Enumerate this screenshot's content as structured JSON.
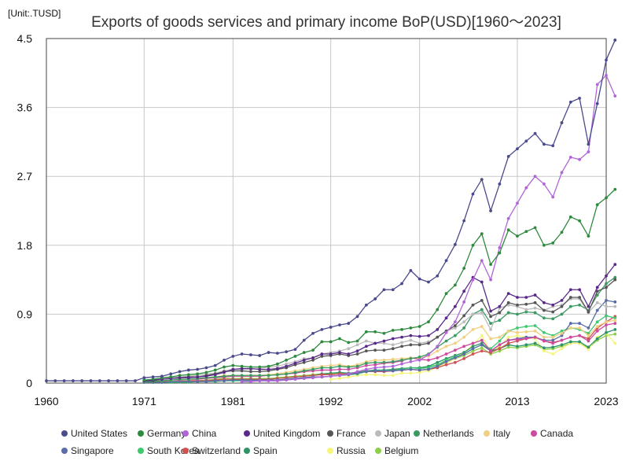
{
  "chart_data": {
    "type": "line",
    "unit_label": "[Unit:.TUSD]",
    "title": "Exports of goods services and primary income BoP(USD)[1960～2023]",
    "xlabel": "",
    "ylabel": "",
    "xlim": [
      1960,
      2023
    ],
    "ylim": [
      0,
      4.5
    ],
    "x_ticks": [
      "1960",
      "1971",
      "1981",
      "1992",
      "2002",
      "2013",
      "2023"
    ],
    "y_ticks": [
      "0",
      "0.9",
      "1.8",
      "2.7",
      "3.6",
      "4.5"
    ],
    "grid": true,
    "legend_position": "bottom",
    "series": [
      {
        "name": "United States",
        "color": "#4a4a8c",
        "start": 1960,
        "values": [
          0.03,
          0.03,
          0.03,
          0.03,
          0.03,
          0.03,
          0.03,
          0.03,
          0.03,
          0.03,
          0.03,
          0.07,
          0.08,
          0.09,
          0.12,
          0.15,
          0.17,
          0.18,
          0.2,
          0.23,
          0.3,
          0.35,
          0.38,
          0.37,
          0.36,
          0.4,
          0.39,
          0.41,
          0.44,
          0.56,
          0.65,
          0.7,
          0.73,
          0.76,
          0.78,
          0.87,
          1.02,
          1.1,
          1.22,
          1.22,
          1.3,
          1.47,
          1.36,
          1.32,
          1.4,
          1.6,
          1.81,
          2.12,
          2.47,
          2.66,
          2.25,
          2.6,
          2.96,
          3.06,
          3.16,
          3.26,
          3.12,
          3.1,
          3.4,
          3.67,
          3.72,
          3.12,
          3.65,
          4.22,
          4.48
        ]
      },
      {
        "name": "Germany",
        "color": "#2d8a3e",
        "start": 1971,
        "values": [
          0.04,
          0.05,
          0.07,
          0.08,
          0.1,
          0.11,
          0.12,
          0.14,
          0.17,
          0.21,
          0.23,
          0.22,
          0.21,
          0.21,
          0.22,
          0.25,
          0.3,
          0.35,
          0.4,
          0.43,
          0.54,
          0.54,
          0.58,
          0.53,
          0.55,
          0.67,
          0.67,
          0.65,
          0.69,
          0.7,
          0.72,
          0.74,
          0.8,
          0.96,
          1.17,
          1.28,
          1.5,
          1.8,
          1.95,
          1.55,
          1.7,
          2.0,
          1.92,
          1.98,
          2.03,
          1.8,
          1.83,
          1.97,
          2.17,
          2.12,
          1.92,
          2.33,
          2.42,
          2.53
        ]
      },
      {
        "name": "China",
        "color": "#b265d8",
        "start": 1982,
        "values": [
          0.02,
          0.02,
          0.03,
          0.03,
          0.03,
          0.04,
          0.05,
          0.06,
          0.07,
          0.08,
          0.09,
          0.1,
          0.12,
          0.15,
          0.18,
          0.2,
          0.21,
          0.22,
          0.25,
          0.28,
          0.3,
          0.37,
          0.48,
          0.66,
          0.8,
          1.06,
          1.35,
          1.6,
          1.35,
          1.77,
          2.15,
          2.35,
          2.55,
          2.7,
          2.6,
          2.43,
          2.75,
          2.95,
          2.92,
          3.02,
          3.9,
          4.02,
          3.75
        ]
      },
      {
        "name": "United Kingdom",
        "color": "#5a2a8a",
        "start": 1971,
        "values": [
          0.03,
          0.04,
          0.05,
          0.06,
          0.07,
          0.07,
          0.08,
          0.09,
          0.11,
          0.14,
          0.18,
          0.19,
          0.19,
          0.18,
          0.18,
          0.19,
          0.22,
          0.26,
          0.3,
          0.33,
          0.38,
          0.38,
          0.4,
          0.38,
          0.42,
          0.48,
          0.52,
          0.55,
          0.58,
          0.6,
          0.62,
          0.61,
          0.62,
          0.7,
          0.85,
          1.0,
          1.2,
          1.38,
          1.32,
          0.94,
          1.0,
          1.17,
          1.12,
          1.12,
          1.15,
          1.05,
          1.02,
          1.08,
          1.22,
          1.22,
          1.0,
          1.25,
          1.4,
          1.55
        ]
      },
      {
        "name": "France",
        "color": "#555555",
        "start": 1971,
        "values": [
          0.03,
          0.03,
          0.05,
          0.06,
          0.07,
          0.08,
          0.08,
          0.1,
          0.12,
          0.15,
          0.16,
          0.16,
          0.15,
          0.15,
          0.16,
          0.18,
          0.2,
          0.24,
          0.27,
          0.3,
          0.35,
          0.36,
          0.38,
          0.36,
          0.38,
          0.42,
          0.43,
          0.43,
          0.45,
          0.48,
          0.5,
          0.5,
          0.52,
          0.6,
          0.68,
          0.75,
          0.88,
          1.02,
          1.08,
          0.87,
          0.92,
          1.05,
          1.02,
          1.03,
          1.05,
          0.95,
          0.93,
          1.0,
          1.12,
          1.12,
          0.93,
          1.2,
          1.25,
          1.35
        ]
      },
      {
        "name": "Japan",
        "color": "#bbbbbb",
        "start": 1971,
        "values": [
          0.03,
          0.04,
          0.05,
          0.07,
          0.08,
          0.09,
          0.1,
          0.12,
          0.13,
          0.16,
          0.18,
          0.18,
          0.18,
          0.19,
          0.21,
          0.22,
          0.25,
          0.28,
          0.32,
          0.33,
          0.38,
          0.4,
          0.42,
          0.45,
          0.5,
          0.55,
          0.52,
          0.52,
          0.5,
          0.53,
          0.56,
          0.52,
          0.54,
          0.6,
          0.68,
          0.72,
          0.8,
          0.9,
          0.92,
          0.7,
          0.98,
          1.02,
          1.0,
          0.96,
          0.98,
          0.95,
          1.0,
          1.02,
          1.1,
          1.1,
          0.92,
          1.05,
          1.0,
          1.0
        ]
      },
      {
        "name": "Netherlands",
        "color": "#3a9a62",
        "start": 1971,
        "values": [
          0.02,
          0.02,
          0.03,
          0.04,
          0.05,
          0.05,
          0.06,
          0.07,
          0.08,
          0.09,
          0.1,
          0.1,
          0.1,
          0.1,
          0.1,
          0.11,
          0.12,
          0.14,
          0.16,
          0.18,
          0.2,
          0.2,
          0.22,
          0.21,
          0.22,
          0.26,
          0.27,
          0.27,
          0.28,
          0.3,
          0.32,
          0.34,
          0.38,
          0.47,
          0.55,
          0.62,
          0.72,
          0.9,
          0.96,
          0.78,
          0.82,
          0.92,
          0.9,
          0.93,
          0.92,
          0.85,
          0.84,
          0.9,
          1.0,
          1.02,
          0.95,
          1.15,
          1.3,
          1.38
        ]
      },
      {
        "name": "Italy",
        "color": "#f0d080",
        "start": 1971,
        "values": [
          0.02,
          0.03,
          0.03,
          0.04,
          0.05,
          0.05,
          0.06,
          0.07,
          0.08,
          0.1,
          0.1,
          0.1,
          0.1,
          0.1,
          0.11,
          0.12,
          0.14,
          0.16,
          0.18,
          0.2,
          0.22,
          0.23,
          0.24,
          0.22,
          0.24,
          0.28,
          0.3,
          0.3,
          0.31,
          0.32,
          0.33,
          0.33,
          0.35,
          0.42,
          0.48,
          0.52,
          0.6,
          0.7,
          0.74,
          0.58,
          0.6,
          0.68,
          0.66,
          0.67,
          0.68,
          0.6,
          0.6,
          0.65,
          0.72,
          0.72,
          0.62,
          0.74,
          0.8,
          0.82
        ]
      },
      {
        "name": "Canada",
        "color": "#cc4aa0",
        "start": 1971,
        "values": [
          0.02,
          0.03,
          0.03,
          0.04,
          0.04,
          0.05,
          0.05,
          0.06,
          0.07,
          0.08,
          0.09,
          0.09,
          0.09,
          0.09,
          0.1,
          0.11,
          0.12,
          0.13,
          0.15,
          0.16,
          0.17,
          0.17,
          0.18,
          0.18,
          0.2,
          0.23,
          0.24,
          0.26,
          0.27,
          0.29,
          0.33,
          0.31,
          0.3,
          0.33,
          0.38,
          0.43,
          0.48,
          0.52,
          0.56,
          0.42,
          0.5,
          0.56,
          0.57,
          0.58,
          0.6,
          0.55,
          0.52,
          0.56,
          0.6,
          0.62,
          0.55,
          0.68,
          0.76,
          0.78
        ]
      },
      {
        "name": "Singapore",
        "color": "#5b6ca8",
        "start": 1971,
        "values": [
          0.01,
          0.01,
          0.01,
          0.02,
          0.02,
          0.02,
          0.02,
          0.02,
          0.03,
          0.03,
          0.04,
          0.04,
          0.04,
          0.04,
          0.04,
          0.04,
          0.05,
          0.06,
          0.07,
          0.08,
          0.08,
          0.09,
          0.1,
          0.11,
          0.13,
          0.15,
          0.16,
          0.16,
          0.16,
          0.17,
          0.18,
          0.17,
          0.18,
          0.22,
          0.28,
          0.33,
          0.38,
          0.45,
          0.5,
          0.42,
          0.5,
          0.56,
          0.58,
          0.6,
          0.6,
          0.56,
          0.56,
          0.62,
          0.78,
          0.78,
          0.72,
          0.95,
          1.08,
          1.06
        ]
      },
      {
        "name": "South Korea",
        "color": "#3ec870",
        "start": 1971,
        "values": [
          0.01,
          0.01,
          0.01,
          0.01,
          0.01,
          0.01,
          0.02,
          0.02,
          0.02,
          0.03,
          0.03,
          0.03,
          0.03,
          0.03,
          0.04,
          0.04,
          0.05,
          0.06,
          0.07,
          0.08,
          0.08,
          0.09,
          0.1,
          0.11,
          0.12,
          0.15,
          0.16,
          0.17,
          0.16,
          0.18,
          0.2,
          0.19,
          0.2,
          0.24,
          0.3,
          0.34,
          0.38,
          0.45,
          0.5,
          0.45,
          0.55,
          0.68,
          0.72,
          0.74,
          0.75,
          0.66,
          0.62,
          0.68,
          0.72,
          0.7,
          0.65,
          0.8,
          0.88,
          0.85
        ]
      },
      {
        "name": "Switzerland",
        "color": "#d05050",
        "start": 1971,
        "values": [
          0.01,
          0.01,
          0.02,
          0.02,
          0.02,
          0.03,
          0.03,
          0.03,
          0.04,
          0.05,
          0.05,
          0.05,
          0.05,
          0.05,
          0.05,
          0.06,
          0.07,
          0.08,
          0.09,
          0.1,
          0.11,
          0.11,
          0.12,
          0.12,
          0.13,
          0.15,
          0.15,
          0.15,
          0.16,
          0.17,
          0.18,
          0.17,
          0.18,
          0.2,
          0.24,
          0.27,
          0.32,
          0.38,
          0.42,
          0.4,
          0.45,
          0.52,
          0.55,
          0.58,
          0.6,
          0.55,
          0.53,
          0.56,
          0.6,
          0.62,
          0.58,
          0.72,
          0.8,
          0.87
        ]
      },
      {
        "name": "Spain",
        "color": "#2e9468",
        "start": 1971,
        "values": [
          0.01,
          0.01,
          0.02,
          0.02,
          0.02,
          0.03,
          0.03,
          0.03,
          0.04,
          0.05,
          0.05,
          0.05,
          0.05,
          0.05,
          0.05,
          0.06,
          0.07,
          0.08,
          0.09,
          0.1,
          0.12,
          0.13,
          0.14,
          0.13,
          0.14,
          0.16,
          0.17,
          0.17,
          0.18,
          0.19,
          0.2,
          0.2,
          0.22,
          0.27,
          0.32,
          0.36,
          0.4,
          0.48,
          0.52,
          0.42,
          0.45,
          0.5,
          0.48,
          0.5,
          0.52,
          0.46,
          0.47,
          0.5,
          0.54,
          0.54,
          0.47,
          0.58,
          0.66,
          0.7
        ]
      },
      {
        "name": "Russia",
        "color": "#f5f57a",
        "start": 1992,
        "values": [
          0.05,
          0.06,
          0.08,
          0.1,
          0.11,
          0.11,
          0.1,
          0.1,
          0.13,
          0.13,
          0.14,
          0.16,
          0.21,
          0.26,
          0.32,
          0.4,
          0.5,
          0.62,
          0.4,
          0.48,
          0.6,
          0.62,
          0.6,
          0.58,
          0.42,
          0.38,
          0.45,
          0.52,
          0.52,
          0.44,
          0.6,
          0.65,
          0.52
        ]
      },
      {
        "name": "Belgium",
        "color": "#8cd04a",
        "start": 1971,
        "values": [
          0.01,
          0.01,
          0.02,
          0.02,
          0.03,
          0.03,
          0.03,
          0.04,
          0.05,
          0.06,
          0.06,
          0.06,
          0.06,
          0.06,
          0.06,
          0.07,
          0.08,
          0.09,
          0.1,
          0.11,
          0.12,
          0.12,
          0.13,
          0.13,
          0.14,
          0.16,
          0.16,
          0.16,
          0.17,
          0.18,
          0.2,
          0.2,
          0.21,
          0.24,
          0.28,
          0.32,
          0.36,
          0.42,
          0.46,
          0.38,
          0.42,
          0.47,
          0.46,
          0.48,
          0.5,
          0.44,
          0.45,
          0.48,
          0.52,
          0.52,
          0.46,
          0.56,
          0.62,
          0.64
        ]
      }
    ]
  }
}
